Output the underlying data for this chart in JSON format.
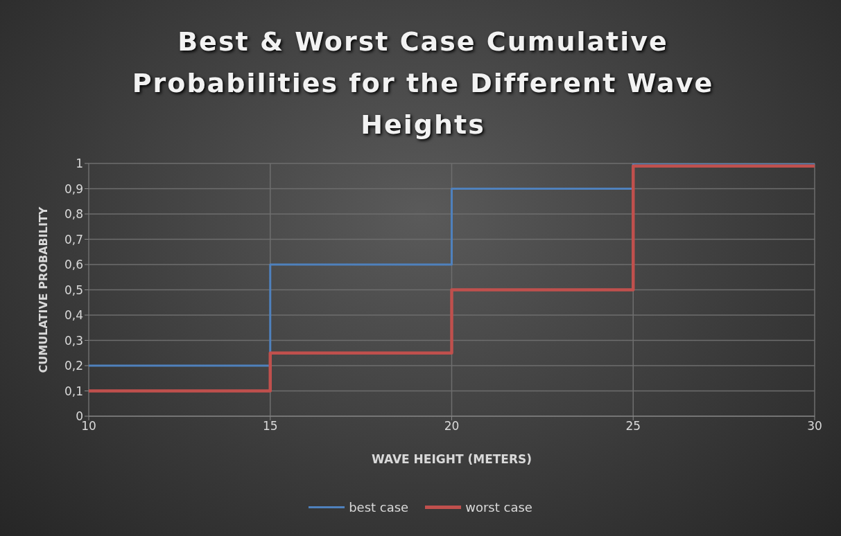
{
  "chart_data": {
    "type": "step",
    "title": "Best & Worst Case Cumulative Probabilities for the Different Wave Heights",
    "xlabel": "WAVE HEIGHT (METERS)",
    "ylabel": "CUMULATIVE PROBABILITY",
    "x": [
      10,
      15,
      20,
      25,
      30
    ],
    "series": [
      {
        "name": "best case",
        "color": "#4f81bd",
        "values": [
          0.2,
          0.6,
          0.9,
          1,
          1
        ]
      },
      {
        "name": "worst case",
        "color": "#c0504d",
        "values": [
          0.1,
          0.25,
          0.5,
          0.99,
          0.99
        ]
      }
    ],
    "xlim": [
      10,
      30
    ],
    "xticks": [
      10,
      15,
      20,
      25,
      30
    ],
    "ylim": [
      0,
      1
    ],
    "yticks": [
      0,
      {
        "value": 0.1,
        "label": "0,1"
      },
      {
        "value": 0.2,
        "label": "0,2"
      },
      {
        "value": 0.3,
        "label": "0,3"
      },
      {
        "value": 0.4,
        "label": "0,4"
      },
      {
        "value": 0.5,
        "label": "0,5"
      },
      {
        "value": 0.6,
        "label": "0,6"
      },
      {
        "value": 0.7,
        "label": "0,7"
      },
      {
        "value": 0.8,
        "label": "0,8"
      },
      {
        "value": 0.9,
        "label": "0,9"
      },
      1
    ],
    "grid": true,
    "legend": "bottom",
    "marker": "none"
  }
}
